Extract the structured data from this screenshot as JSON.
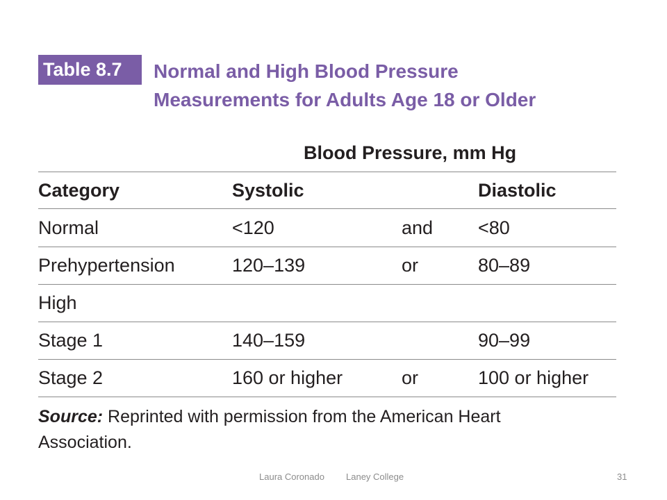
{
  "table_label": "Table 8.7",
  "title_lines": [
    "Normal and High Blood Pressure",
    "Measurements for Adults Age 18 or Older"
  ],
  "group_header": "Blood Pressure, mm Hg",
  "columns": {
    "category": "Category",
    "systolic": "Systolic",
    "diastolic": "Diastolic"
  },
  "rows": [
    {
      "category": "Normal",
      "systolic": "<120",
      "conjunction": "and",
      "diastolic": "<80"
    },
    {
      "category": "Prehypertension",
      "systolic": "120–139",
      "conjunction": "or",
      "diastolic": "80–89"
    },
    {
      "category": "High",
      "systolic": "",
      "conjunction": "",
      "diastolic": ""
    },
    {
      "category": "Stage 1",
      "systolic": "140–159",
      "conjunction": "",
      "diastolic": "90–99"
    },
    {
      "category": "Stage 2",
      "systolic": "160 or higher",
      "conjunction": "or",
      "diastolic": "100 or higher"
    }
  ],
  "source": {
    "label": "Source:",
    "text": "Reprinted with permission from the American Heart Association."
  },
  "footer": {
    "author": "Laura Coronado",
    "institution": "Laney College",
    "page_number": "31"
  },
  "colors": {
    "accent": "#7a5da6",
    "text": "#231f20",
    "footer": "#8c8c8c"
  }
}
